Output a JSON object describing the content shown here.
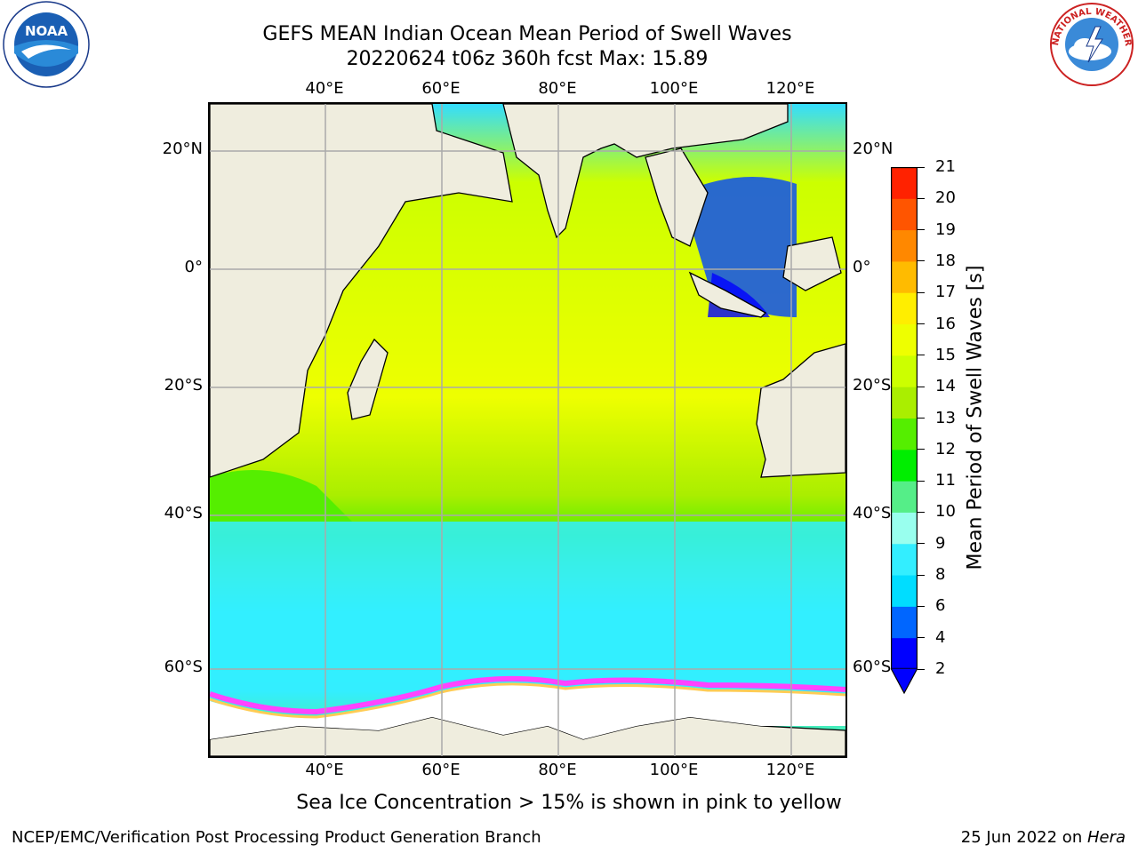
{
  "title": {
    "line1": "GEFS MEAN Indian Ocean Mean Period of Swell Waves",
    "line2": "20220624 t06z 360h fcst   Max: 15.89"
  },
  "logos": {
    "left": "noaa-logo",
    "right": "nws-logo",
    "nws_text": "NATIONAL WEATHER SERVICE"
  },
  "map": {
    "lon_labels": [
      "40°E",
      "60°E",
      "80°E",
      "100°E",
      "120°E"
    ],
    "lat_labels": [
      "20°N",
      "0°",
      "20°S",
      "40°S",
      "60°S"
    ],
    "extent": {
      "lon_min": 20,
      "lon_max": 130,
      "lat_min": -72,
      "lat_max": 26
    },
    "colors": {
      "land": "#efedde",
      "ice_pink": "#ff44ff",
      "ice_yellow": "#ffcc55",
      "grid": "#aaaaaa"
    }
  },
  "colorbar": {
    "label": "Mean Period of Swell Waves [s]",
    "ticks": [
      "2",
      "4",
      "6",
      "8",
      "9",
      "10",
      "11",
      "12",
      "13",
      "14",
      "15",
      "16",
      "17",
      "18",
      "19",
      "20",
      "21"
    ],
    "colors": [
      "#0000ff",
      "#0066ff",
      "#00ddff",
      "#33eeff",
      "#99ffee",
      "#55ee88",
      "#00ee00",
      "#55ee00",
      "#aaee00",
      "#ccff00",
      "#eeff00",
      "#ffee00",
      "#ffbb00",
      "#ff8800",
      "#ff5500",
      "#ff2200"
    ]
  },
  "subcaption": "Sea Ice Concentration > 15% is shown in pink to yellow",
  "footer": {
    "left": "NCEP/EMC/Verification Post Processing Product Generation Branch",
    "right_date": "25 Jun 2022 on ",
    "right_host": "Hera"
  }
}
